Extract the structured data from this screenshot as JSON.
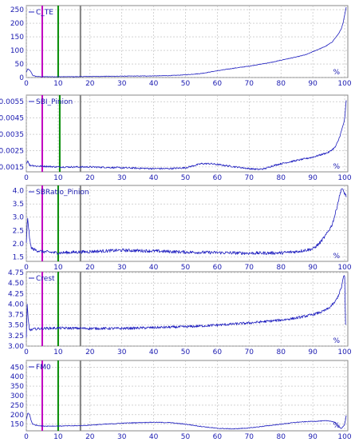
{
  "x_ticks": [
    "0",
    "10",
    "20",
    "30",
    "40",
    "50",
    "60",
    "70",
    "80",
    "90",
    "100"
  ],
  "unit": "%",
  "colors": {
    "series": "#1f1fbf",
    "magenta_marker": "#c000c0",
    "green_marker": "#008a00",
    "gray_marker": "#808080",
    "grid": "#b8b8b8",
    "frame": "#8a8a8a",
    "axis_text": "#1a1ab0"
  },
  "chart_data": [
    {
      "type": "line",
      "legend": "C_TE",
      "xlim": [
        0,
        101
      ],
      "ylim": [
        0,
        265
      ],
      "y_ticks": [
        "0",
        "50",
        "100",
        "150",
        "200",
        "250"
      ],
      "y_tick_values": [
        0,
        50,
        100,
        150,
        200,
        250
      ],
      "markers": [
        5,
        10,
        17
      ],
      "noise": 1,
      "grid": true,
      "series": [
        {
          "x": [
            0,
            0.5,
            1,
            1.5,
            2,
            3,
            5,
            8,
            10,
            15,
            20,
            30,
            40,
            45,
            50,
            55,
            60,
            65,
            70,
            75,
            78,
            80,
            85,
            88,
            90,
            92,
            94,
            96,
            97,
            98,
            99,
            99.5,
            100,
            100.5
          ],
          "y": [
            20,
            32,
            27,
            20,
            8,
            4,
            3,
            3,
            3,
            3,
            4,
            5,
            6,
            7,
            10,
            15,
            25,
            34,
            42,
            52,
            58,
            64,
            76,
            85,
            95,
            105,
            115,
            130,
            145,
            160,
            180,
            200,
            230,
            260
          ]
        }
      ]
    },
    {
      "type": "line",
      "legend": "SBI_Pinion",
      "xlim": [
        0,
        101
      ],
      "ylim": [
        0.0012,
        0.0059
      ],
      "y_ticks": [
        "0.0015",
        "0.0025",
        "0.0035",
        "0.0045",
        "0.0055"
      ],
      "y_tick_values": [
        0.0015,
        0.0025,
        0.0035,
        0.0045,
        0.0055
      ],
      "markers": [
        5,
        10.5,
        17
      ],
      "noise": 5e-05,
      "grid": true,
      "series": [
        {
          "x": [
            0,
            0.5,
            1,
            2,
            3,
            5,
            10,
            20,
            30,
            40,
            45,
            50,
            53,
            55,
            58,
            62,
            66,
            70,
            73,
            75,
            77,
            80,
            85,
            90,
            95,
            97,
            98,
            99,
            100,
            100.5
          ],
          "y": [
            0.0017,
            0.0019,
            0.0016,
            0.0016,
            0.00155,
            0.00155,
            0.0015,
            0.0015,
            0.00145,
            0.0014,
            0.0014,
            0.00145,
            0.0016,
            0.0017,
            0.0017,
            0.0016,
            0.0015,
            0.0014,
            0.00135,
            0.0014,
            0.00155,
            0.0017,
            0.0019,
            0.0021,
            0.0024,
            0.0027,
            0.0031,
            0.0037,
            0.0044,
            0.0056
          ]
        }
      ]
    },
    {
      "type": "line",
      "legend": "SBRatio_Pinion",
      "xlim": [
        0,
        101
      ],
      "ylim": [
        1.33,
        4.2
      ],
      "y_ticks": [
        "1.5",
        "2.0",
        "2.5",
        "3.0",
        "3.5",
        "4.0"
      ],
      "y_tick_values": [
        1.5,
        2.0,
        2.5,
        3.0,
        3.5,
        4.0
      ],
      "markers": [
        5,
        10,
        17
      ],
      "noise": 0.06,
      "grid": true,
      "series": [
        {
          "x": [
            0,
            0.4,
            0.8,
            1.2,
            1.6,
            2,
            3,
            5,
            10,
            20,
            30,
            40,
            50,
            60,
            70,
            80,
            85,
            90,
            92,
            94,
            96,
            97,
            98,
            99,
            99.5,
            100,
            100.5
          ],
          "y": [
            2.0,
            3.0,
            2.5,
            2.0,
            1.85,
            1.8,
            1.75,
            1.7,
            1.65,
            1.7,
            1.75,
            1.72,
            1.68,
            1.66,
            1.64,
            1.65,
            1.7,
            1.8,
            2.0,
            2.3,
            2.7,
            3.1,
            3.6,
            4.1,
            4.0,
            3.9,
            3.8
          ]
        }
      ]
    },
    {
      "type": "line",
      "legend": "Crest",
      "xlim": [
        0,
        101
      ],
      "ylim": [
        3.0,
        4.77
      ],
      "y_ticks": [
        "3.00",
        "3.25",
        "3.50",
        "3.75",
        "4.00",
        "4.25",
        "4.50",
        "4.75"
      ],
      "y_tick_values": [
        3.0,
        3.25,
        3.5,
        3.75,
        4.0,
        4.25,
        4.5,
        4.75
      ],
      "markers": [
        5,
        10,
        17
      ],
      "noise": 0.03,
      "grid": true,
      "series": [
        {
          "x": [
            0,
            0.3,
            0.6,
            1,
            1.5,
            2,
            3,
            5,
            10,
            20,
            30,
            40,
            50,
            60,
            70,
            80,
            85,
            90,
            93,
            95,
            97,
            98,
            99,
            99.5,
            100,
            100.3
          ],
          "y": [
            3.2,
            4.0,
            3.6,
            3.4,
            3.38,
            3.4,
            3.41,
            3.42,
            3.43,
            3.42,
            3.42,
            3.44,
            3.46,
            3.5,
            3.55,
            3.62,
            3.67,
            3.75,
            3.82,
            3.9,
            4.05,
            4.2,
            4.4,
            4.6,
            4.7,
            3.5
          ]
        }
      ]
    },
    {
      "type": "line",
      "legend": "FM0",
      "xlim": [
        0,
        101
      ],
      "ylim": [
        115,
        485
      ],
      "y_ticks": [
        "150",
        "200",
        "250",
        "300",
        "350",
        "400",
        "450"
      ],
      "y_tick_values": [
        150,
        200,
        250,
        300,
        350,
        400,
        450
      ],
      "markers": [
        5,
        10,
        17
      ],
      "noise": 2,
      "grid": true,
      "series": [
        {
          "x": [
            0,
            0.5,
            1,
            1.5,
            2,
            3,
            5,
            10,
            17,
            20,
            25,
            30,
            35,
            40,
            45,
            50,
            55,
            60,
            65,
            70,
            75,
            80,
            85,
            90,
            95,
            97,
            98,
            99,
            100,
            100.5
          ],
          "y": [
            175,
            210,
            200,
            170,
            150,
            145,
            140,
            140,
            142,
            145,
            150,
            155,
            158,
            160,
            158,
            150,
            138,
            128,
            125,
            130,
            140,
            150,
            160,
            165,
            168,
            160,
            140,
            125,
            150,
            195
          ]
        }
      ]
    }
  ]
}
